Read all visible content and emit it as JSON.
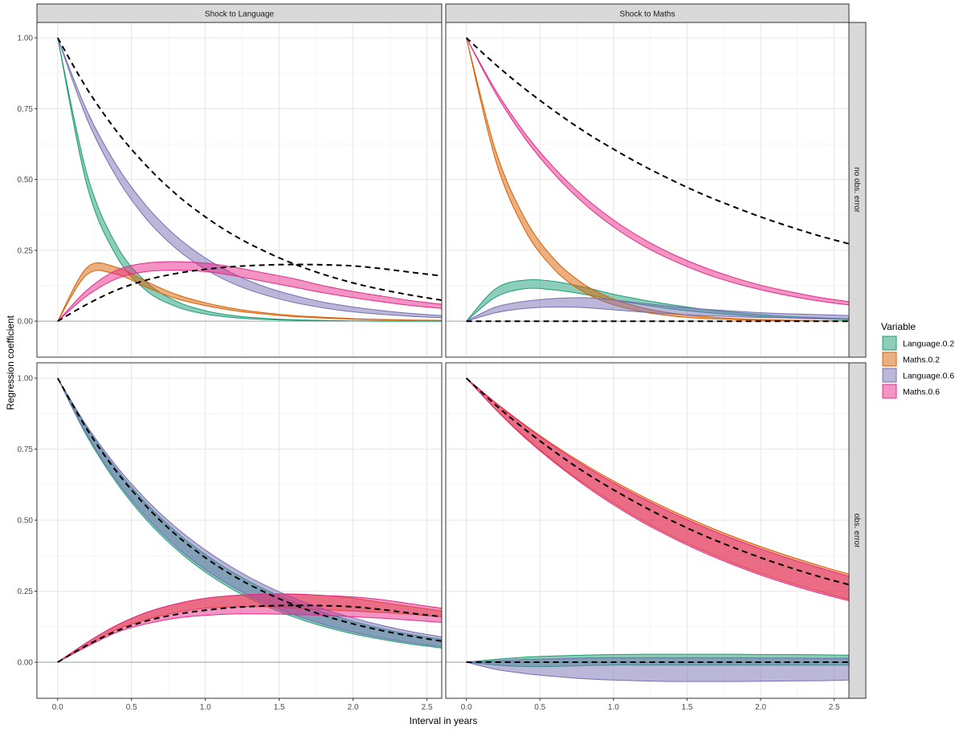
{
  "chart_data": {
    "type": "area",
    "xlabel": "Interval in years",
    "ylabel": "Regression coefficient",
    "x_ticks": [
      "0.0",
      "0.5",
      "1.0",
      "1.5",
      "2.0",
      "2.5"
    ],
    "y_ticks": [
      "0.00",
      "0.25",
      "0.50",
      "0.75",
      "1.00"
    ],
    "xlim": [
      -0.14,
      2.6
    ],
    "ylim": [
      -0.127,
      1.054
    ],
    "grid": true,
    "legend": {
      "title": "Variable",
      "position": "right",
      "entries": [
        "Language.0.2",
        "Maths.0.2",
        "Language.0.6",
        "Maths.0.6"
      ]
    },
    "colors": {
      "Language.0.2": "#1B9E77",
      "Maths.0.2": "#D95F02",
      "Language.0.6": "#7570B3",
      "Maths.0.6": "#E7298A"
    },
    "column_strips": [
      "Shock to Language",
      "Shock to Maths"
    ],
    "row_strips": [
      "no obs. error",
      "obs. error"
    ],
    "x": [
      0,
      0.2,
      0.4,
      0.6,
      0.8,
      1.0,
      1.2,
      1.4,
      1.6,
      1.8,
      2.0,
      2.2,
      2.4,
      2.6
    ],
    "panels": [
      {
        "row": 0,
        "col": 0,
        "ribbons": [
          {
            "name": "Language.0.2",
            "lower": [
              1,
              0.477,
              0.228,
              0.108,
              0.052,
              0.025,
              0.012,
              0.006,
              0.003,
              0.001,
              0.001,
              0,
              0,
              0
            ],
            "upper": [
              1,
              0.517,
              0.267,
              0.138,
              0.071,
              0.037,
              0.019,
              0.01,
              0.005,
              0.003,
              0.001,
              0.001,
              0,
              0
            ]
          },
          {
            "name": "Maths.0.2",
            "lower": [
              0,
              0.165,
              0.165,
              0.12,
              0.08,
              0.055,
              0.037,
              0.025,
              0.016,
              0.011,
              0.007,
              0.005,
              0.003,
              0.002
            ],
            "upper": [
              0,
              0.19,
              0.19,
              0.14,
              0.095,
              0.065,
              0.044,
              0.03,
              0.02,
              0.014,
              0.009,
              0.006,
              0.004,
              0.003
            ]
          },
          {
            "name": "Language.0.6",
            "lower": [
              1,
              0.712,
              0.507,
              0.361,
              0.257,
              0.183,
              0.13,
              0.093,
              0.066,
              0.047,
              0.033,
              0.024,
              0.017,
              0.012
            ],
            "upper": [
              1,
              0.741,
              0.549,
              0.407,
              0.301,
              0.223,
              0.165,
              0.122,
              0.091,
              0.067,
              0.05,
              0.037,
              0.027,
              0.02
            ]
          },
          {
            "name": "Maths.0.6",
            "lower": [
              0,
              0.09,
              0.15,
              0.175,
              0.18,
              0.175,
              0.16,
              0.14,
              0.12,
              0.1,
              0.083,
              0.068,
              0.055,
              0.045
            ],
            "upper": [
              0,
              0.11,
              0.18,
              0.205,
              0.21,
              0.205,
              0.19,
              0.17,
              0.15,
              0.125,
              0.105,
              0.088,
              0.072,
              0.06
            ]
          }
        ],
        "dashed": [
          [
            1,
            0.819,
            0.67,
            0.549,
            0.449,
            0.368,
            0.301,
            0.247,
            0.202,
            0.165,
            0.135,
            0.111,
            0.091,
            0.074
          ],
          [
            0,
            0.06,
            0.11,
            0.145,
            0.168,
            0.183,
            0.193,
            0.198,
            0.2,
            0.199,
            0.195,
            0.185,
            0.172,
            0.16
          ]
        ]
      },
      {
        "row": 0,
        "col": 1,
        "ribbons": [
          {
            "name": "Language.0.2",
            "lower": [
              0,
              0.085,
              0.115,
              0.11,
              0.095,
              0.075,
              0.058,
              0.043,
              0.032,
              0.023,
              0.016,
              0.011,
              0.008,
              0.005
            ],
            "upper": [
              0,
              0.115,
              0.145,
              0.14,
              0.12,
              0.095,
              0.075,
              0.058,
              0.043,
              0.032,
              0.023,
              0.016,
              0.012,
              0.008
            ]
          },
          {
            "name": "Maths.0.2",
            "lower": [
              1,
              0.566,
              0.32,
              0.181,
              0.102,
              0.058,
              0.033,
              0.018,
              0.01,
              0.006,
              0.003,
              0.002,
              0.001,
              0.001
            ],
            "upper": [
              1,
              0.6,
              0.361,
              0.217,
              0.13,
              0.078,
              0.047,
              0.028,
              0.017,
              0.01,
              0.006,
              0.004,
              0.002,
              0.001
            ]
          },
          {
            "name": "Language.0.6",
            "lower": [
              0,
              0.03,
              0.045,
              0.05,
              0.048,
              0.04,
              0.032,
              0.025,
              0.02,
              0.016,
              0.013,
              0.011,
              0.01,
              0.009
            ],
            "upper": [
              0,
              0.05,
              0.07,
              0.08,
              0.083,
              0.075,
              0.063,
              0.052,
              0.043,
              0.036,
              0.03,
              0.026,
              0.023,
              0.02
            ]
          },
          {
            "name": "Maths.0.6",
            "lower": [
              1,
              0.803,
              0.644,
              0.517,
              0.415,
              0.333,
              0.267,
              0.215,
              0.172,
              0.138,
              0.111,
              0.089,
              0.071,
              0.057
            ],
            "upper": [
              1,
              0.814,
              0.662,
              0.539,
              0.439,
              0.357,
              0.291,
              0.237,
              0.193,
              0.157,
              0.127,
              0.104,
              0.084,
              0.069
            ]
          }
        ],
        "dashed": [
          [
            1,
            0.905,
            0.819,
            0.741,
            0.67,
            0.607,
            0.549,
            0.497,
            0.449,
            0.407,
            0.368,
            0.333,
            0.301,
            0.273
          ],
          [
            0,
            0,
            0,
            0,
            0,
            0,
            0,
            0,
            0,
            0,
            0,
            0,
            0,
            0
          ]
        ]
      },
      {
        "row": 1,
        "col": 0,
        "ribbons": [
          {
            "name": "Language.0.2",
            "lower": [
              1,
              0.794,
              0.631,
              0.502,
              0.399,
              0.317,
              0.252,
              0.2,
              0.159,
              0.126,
              0.1,
              0.08,
              0.063,
              0.05
            ],
            "upper": [
              1,
              0.824,
              0.679,
              0.559,
              0.46,
              0.379,
              0.312,
              0.257,
              0.212,
              0.175,
              0.144,
              0.118,
              0.097,
              0.08
            ]
          },
          {
            "name": "Maths.0.2",
            "lower": [
              0,
              0.06,
              0.115,
              0.15,
              0.175,
              0.19,
              0.195,
              0.195,
              0.19,
              0.185,
              0.18,
              0.175,
              0.168,
              0.16
            ],
            "upper": [
              0,
              0.07,
              0.13,
              0.175,
              0.205,
              0.225,
              0.235,
              0.24,
              0.24,
              0.235,
              0.225,
              0.21,
              0.195,
              0.18
            ]
          },
          {
            "name": "Language.0.6",
            "lower": [
              1,
              0.799,
              0.639,
              0.511,
              0.408,
              0.326,
              0.261,
              0.208,
              0.167,
              0.133,
              0.106,
              0.085,
              0.068,
              0.054
            ],
            "upper": [
              1,
              0.83,
              0.689,
              0.572,
              0.475,
              0.395,
              0.328,
              0.272,
              0.226,
              0.187,
              0.156,
              0.129,
              0.107,
              0.089
            ]
          },
          {
            "name": "Maths.0.6",
            "lower": [
              0,
              0.055,
              0.105,
              0.135,
              0.155,
              0.165,
              0.17,
              0.17,
              0.168,
              0.165,
              0.16,
              0.155,
              0.148,
              0.14
            ],
            "upper": [
              0,
              0.07,
              0.13,
              0.175,
              0.205,
              0.225,
              0.235,
              0.24,
              0.24,
              0.235,
              0.23,
              0.22,
              0.205,
              0.19
            ]
          }
        ],
        "dashed": [
          [
            1,
            0.819,
            0.67,
            0.549,
            0.449,
            0.368,
            0.301,
            0.247,
            0.202,
            0.165,
            0.135,
            0.111,
            0.091,
            0.074
          ],
          [
            0,
            0.06,
            0.11,
            0.145,
            0.168,
            0.183,
            0.193,
            0.198,
            0.2,
            0.199,
            0.195,
            0.185,
            0.172,
            0.16
          ]
        ]
      },
      {
        "row": 1,
        "col": 1,
        "ribbons": [
          {
            "name": "Language.0.2",
            "lower": [
              0,
              -0.01,
              -0.015,
              -0.015,
              -0.012,
              -0.01,
              -0.01,
              -0.01,
              -0.01,
              -0.01,
              -0.01,
              -0.01,
              -0.01,
              -0.01
            ],
            "upper": [
              0,
              0.01,
              0.018,
              0.022,
              0.025,
              0.027,
              0.028,
              0.028,
              0.028,
              0.028,
              0.027,
              0.027,
              0.026,
              0.025
            ]
          },
          {
            "name": "Maths.0.2",
            "lower": [
              1,
              0.89,
              0.793,
              0.706,
              0.629,
              0.56,
              0.498,
              0.444,
              0.395,
              0.352,
              0.313,
              0.279,
              0.249,
              0.221
            ],
            "upper": [
              1,
              0.914,
              0.835,
              0.763,
              0.698,
              0.638,
              0.583,
              0.533,
              0.487,
              0.445,
              0.407,
              0.372,
              0.34,
              0.31
            ]
          },
          {
            "name": "Language.0.6",
            "lower": [
              0,
              -0.025,
              -0.04,
              -0.05,
              -0.058,
              -0.063,
              -0.066,
              -0.068,
              -0.068,
              -0.068,
              -0.067,
              -0.066,
              -0.065,
              -0.063
            ],
            "upper": [
              0,
              0.005,
              0.01,
              0.012,
              0.015,
              0.016,
              0.016,
              0.016,
              0.016,
              0.016,
              0.015,
              0.015,
              0.014,
              0.014
            ]
          },
          {
            "name": "Maths.0.6",
            "lower": [
              1,
              0.889,
              0.789,
              0.702,
              0.624,
              0.554,
              0.492,
              0.438,
              0.389,
              0.346,
              0.307,
              0.273,
              0.243,
              0.216
            ],
            "upper": [
              1,
              0.912,
              0.832,
              0.759,
              0.692,
              0.631,
              0.576,
              0.525,
              0.479,
              0.437,
              0.399,
              0.364,
              0.332,
              0.302
            ]
          }
        ],
        "dashed": [
          [
            1,
            0.905,
            0.819,
            0.741,
            0.67,
            0.607,
            0.549,
            0.497,
            0.449,
            0.407,
            0.368,
            0.333,
            0.301,
            0.273
          ],
          [
            0,
            0,
            0,
            0,
            0,
            0,
            0,
            0,
            0,
            0,
            0,
            0,
            0,
            0
          ]
        ]
      }
    ]
  }
}
